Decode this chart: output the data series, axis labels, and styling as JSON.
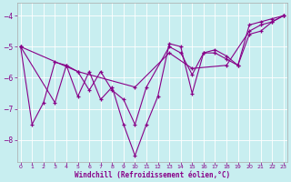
{
  "xlabel": "Windchill (Refroidissement éolien,°C)",
  "bg_color": "#c8eef0",
  "line_color": "#880088",
  "grid_color": "#b0d8dc",
  "xlim": [
    -0.3,
    23.3
  ],
  "ylim": [
    -8.7,
    -3.6
  ],
  "yticks": [
    -8,
    -7,
    -6,
    -5,
    -4
  ],
  "xticks": [
    0,
    1,
    2,
    3,
    4,
    5,
    6,
    7,
    8,
    9,
    10,
    11,
    12,
    13,
    14,
    15,
    16,
    17,
    18,
    19,
    20,
    21,
    22,
    23
  ],
  "series1_x": [
    0,
    1,
    2,
    3,
    4,
    5,
    6,
    7,
    8,
    9,
    10,
    11,
    12,
    13,
    14,
    15,
    16,
    17,
    18,
    19,
    20,
    21,
    22,
    23
  ],
  "series1_y": [
    -5.0,
    -7.5,
    -6.8,
    -5.5,
    -5.6,
    -6.6,
    -5.8,
    -6.7,
    -6.3,
    -7.5,
    -8.5,
    -7.5,
    -6.6,
    -4.9,
    -5.0,
    -6.5,
    -5.2,
    -5.1,
    -5.3,
    -5.6,
    -4.3,
    -4.2,
    -4.1,
    -4.0
  ],
  "series2_x": [
    0,
    3,
    4,
    5,
    6,
    7,
    8,
    9,
    10,
    11,
    13,
    14,
    15,
    16,
    17,
    18,
    19,
    20,
    21,
    22,
    23
  ],
  "series2_y": [
    -5.0,
    -6.8,
    -5.6,
    -5.8,
    -6.4,
    -5.8,
    -6.4,
    -6.7,
    -7.5,
    -6.3,
    -5.0,
    -5.2,
    -5.9,
    -5.2,
    -5.2,
    -5.4,
    -5.6,
    -4.6,
    -4.5,
    -4.2,
    -4.0
  ],
  "series3_x": [
    0,
    5,
    10,
    13,
    15,
    18,
    20,
    21,
    22,
    23
  ],
  "series3_y": [
    -5.0,
    -5.8,
    -6.3,
    -5.2,
    -5.7,
    -5.6,
    -4.5,
    -4.3,
    -4.2,
    -4.0
  ]
}
